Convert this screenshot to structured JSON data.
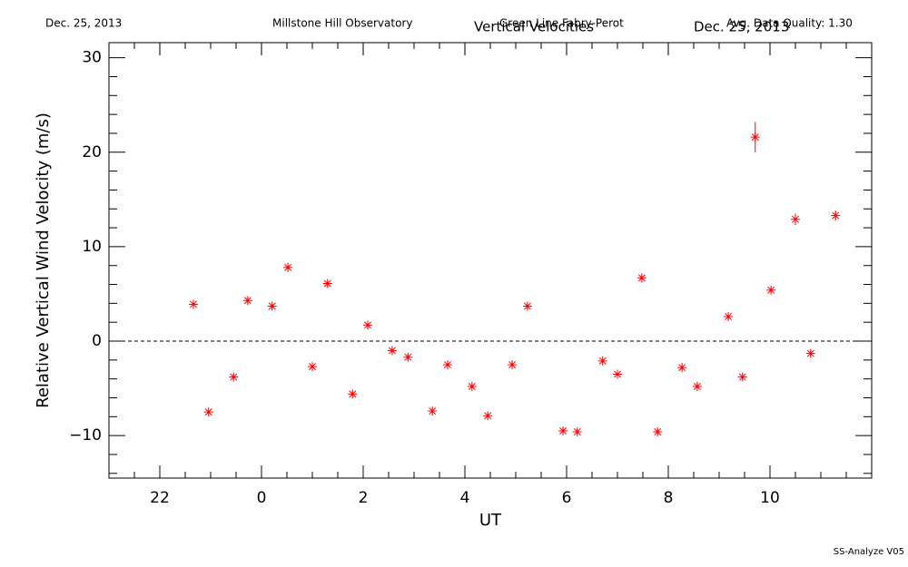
{
  "chart_data": {
    "type": "scatter",
    "header_left": "Dec. 25, 2013",
    "header_site": "Millstone Hill Observatory",
    "header_instrument": "Green Line Fabry-Perot",
    "header_quality": "Avg. Data Quality: 1.30",
    "title": "Vertical Velocities",
    "subtitle": "Dec. 25, 2013",
    "footer": "SS-Analyze V05",
    "xlabel": "UT",
    "ylabel": "Relative Vertical Wind Velocity (m/s)",
    "color": "#ff0000",
    "zero_line": 0,
    "xlim": [
      -3,
      12
    ],
    "ylim": [
      -14.5,
      31.6
    ],
    "xticks": [
      {
        "value": -2,
        "label": "22"
      },
      0,
      2,
      4,
      6,
      8,
      10
    ],
    "yticks": [
      {
        "value": -10,
        "label": "−10"
      },
      0,
      10,
      20,
      30
    ],
    "xminorticks": [
      -2.5,
      -1.5,
      -1,
      -0.5,
      0.5,
      1,
      1.5,
      2.5,
      3,
      3.5,
      4.5,
      5,
      5.5,
      6.5,
      7,
      7.5,
      8.5,
      9,
      9.5,
      10.5,
      11,
      11.5
    ],
    "yminorticks": [
      -14,
      -12,
      -8,
      -6,
      -4,
      -2,
      2,
      4,
      6,
      8,
      12,
      14,
      16,
      18,
      22,
      24,
      26,
      28
    ],
    "x": [
      -1.34,
      -1.04,
      -0.55,
      -0.27,
      0.21,
      0.52,
      1.0,
      1.3,
      1.79,
      2.09,
      2.57,
      2.88,
      3.36,
      3.66,
      4.14,
      4.45,
      4.93,
      5.23,
      5.93,
      6.21,
      6.71,
      7.0,
      7.48,
      7.79,
      8.27,
      8.57,
      9.18,
      9.46,
      9.71,
      10.02,
      10.5,
      10.8,
      11.29
    ],
    "values": [
      3.9,
      -7.5,
      -3.8,
      4.3,
      3.7,
      7.8,
      -2.7,
      6.1,
      -5.6,
      1.7,
      -1.0,
      -1.7,
      -7.4,
      -2.5,
      -4.8,
      -7.9,
      -2.5,
      3.7,
      -9.5,
      -9.6,
      -2.1,
      -3.5,
      6.7,
      -9.6,
      -2.8,
      -4.8,
      2.6,
      -3.8,
      21.6,
      5.4,
      12.9,
      -1.3,
      13.3
    ],
    "errors": [
      0.3,
      0.3,
      0.3,
      0.3,
      0.3,
      0.3,
      0.3,
      0.3,
      0.3,
      0.3,
      0.3,
      0.3,
      0.3,
      0.3,
      0.3,
      0.3,
      0.3,
      0.3,
      0.3,
      0.3,
      0.3,
      0.3,
      0.3,
      0.3,
      0.3,
      0.3,
      0.3,
      0.3,
      1.6,
      0.3,
      0.6,
      0.3,
      0.5
    ]
  }
}
